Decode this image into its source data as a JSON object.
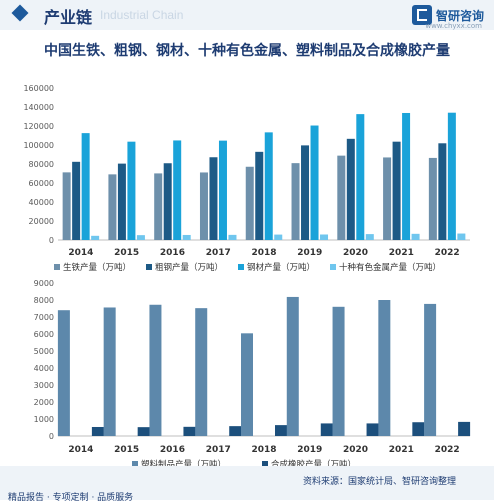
{
  "header": {
    "title": "产业链",
    "ghost": "Industrial Chain",
    "logo_name": "智研咨询",
    "logo_url": "www.chyxx.com"
  },
  "chart_title": "中国生铁、粗钢、钢材、十种有色金属、塑料制品及合成橡胶产量",
  "footer": {
    "left": "精品报告 · 专项定制 · 品质服务",
    "source": "资料来源：国家统计局、智研咨询整理",
    "logo_name": "智研咨询"
  },
  "colors": {
    "pig_iron": "#6e90ab",
    "crude_steel": "#1d5a86",
    "steel": "#1aa3d9",
    "nonferrous": "#6fc6ee",
    "plastic": "#5d88ab",
    "rubber": "#1c4f7c"
  },
  "chart_data": [
    {
      "type": "bar",
      "categories": [
        "2014",
        "2015",
        "2016",
        "2017",
        "2018",
        "2019",
        "2020",
        "2021",
        "2022"
      ],
      "yticks": [
        "0",
        "20000",
        "40000",
        "60000",
        "80000",
        "100000",
        "120000",
        "140000",
        "160000"
      ],
      "ylim": [
        0,
        160000
      ],
      "series": [
        {
          "name": "生铁产量（万吨）",
          "values": [
            71200,
            69100,
            70100,
            71100,
            77100,
            80900,
            88800,
            86900,
            86400
          ]
        },
        {
          "name": "粗钢产量（万吨）",
          "values": [
            82300,
            80400,
            80800,
            87100,
            92800,
            99600,
            106500,
            103500,
            101800
          ]
        },
        {
          "name": "钢材产量（万吨）",
          "values": [
            112500,
            103500,
            104800,
            104600,
            113300,
            120500,
            132500,
            133700,
            134000
          ]
        },
        {
          "name": "十种有色金属产量（万吨）",
          "values": [
            4400,
            5100,
            5300,
            5400,
            5700,
            5800,
            6200,
            6500,
            6800
          ]
        }
      ],
      "legend_position": "bottom"
    },
    {
      "type": "bar",
      "categories": [
        "2014",
        "2015",
        "2016",
        "2017",
        "2018",
        "2019",
        "2020",
        "2021",
        "2022"
      ],
      "yticks": [
        "0",
        "1000",
        "2000",
        "3000",
        "4000",
        "5000",
        "6000",
        "7000",
        "8000",
        "9000"
      ],
      "ylim": [
        0,
        9000
      ],
      "series": [
        {
          "name": "塑料制品产量（万吨）",
          "values": [
            7400,
            7560,
            7720,
            7520,
            6040,
            8180,
            7600,
            8000,
            7770
          ]
        },
        {
          "name": "合成橡胶产量（万吨）",
          "values": [
            530,
            520,
            540,
            580,
            640,
            740,
            740,
            810,
            830
          ]
        }
      ],
      "legend_position": "bottom"
    }
  ]
}
